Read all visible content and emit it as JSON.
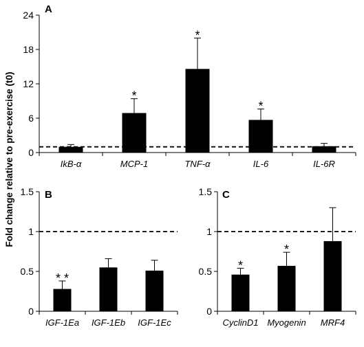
{
  "figure": {
    "ylabel": "Fold change relative to pre-exercise (t0)",
    "reference_line_value": 1
  },
  "chart_data": [
    {
      "type": "bar",
      "panel": "A",
      "categories": [
        "IkB-α",
        "MCP-1",
        "TNF-α",
        "IL-6",
        "IL-6R"
      ],
      "values": [
        1.0,
        6.9,
        14.6,
        5.7,
        1.1
      ],
      "errors": [
        0.4,
        2.5,
        5.4,
        1.9,
        0.5
      ],
      "significance": [
        "",
        "*",
        "*",
        "*",
        ""
      ],
      "ylim": [
        0,
        24
      ],
      "yticks": [
        0,
        6,
        12,
        18,
        24
      ],
      "ytick_labels": [
        "0",
        "6",
        "12",
        "18",
        "24"
      ],
      "reference_line": 1,
      "grid": false
    },
    {
      "type": "bar",
      "panel": "B",
      "categories": [
        "IGF-1Ea",
        "IGF-1Eb",
        "IGF-1Ec"
      ],
      "values": [
        0.28,
        0.55,
        0.51
      ],
      "errors": [
        0.1,
        0.11,
        0.13
      ],
      "significance": [
        "* *",
        "",
        ""
      ],
      "ylim": [
        0,
        1.5
      ],
      "yticks": [
        0,
        0.5,
        1,
        1.5
      ],
      "ytick_labels": [
        "0",
        "0.5",
        "1",
        "1.5"
      ],
      "reference_line": 1,
      "grid": false
    },
    {
      "type": "bar",
      "panel": "C",
      "categories": [
        "CyclinD1",
        "Myogenin",
        "MRF4"
      ],
      "values": [
        0.46,
        0.57,
        0.88
      ],
      "errors": [
        0.08,
        0.17,
        0.42
      ],
      "significance": [
        "*",
        "*",
        ""
      ],
      "ylim": [
        0,
        1.5
      ],
      "yticks": [
        0,
        0.5,
        1,
        1.5
      ],
      "ytick_labels": [
        "0",
        "0.5",
        "1",
        "1.5"
      ],
      "reference_line": 1,
      "grid": false
    }
  ]
}
